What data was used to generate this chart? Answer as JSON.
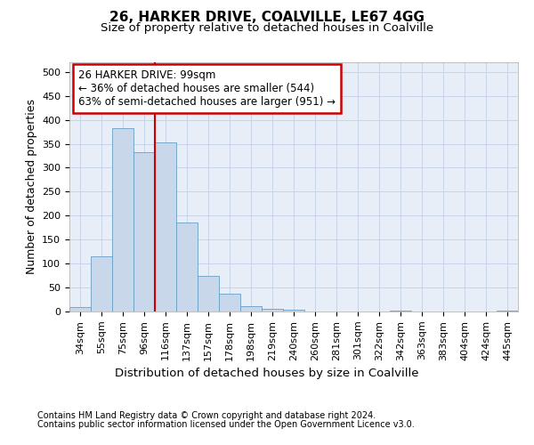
{
  "title1": "26, HARKER DRIVE, COALVILLE, LE67 4GG",
  "title2": "Size of property relative to detached houses in Coalville",
  "xlabel": "Distribution of detached houses by size in Coalville",
  "ylabel": "Number of detached properties",
  "footer1": "Contains HM Land Registry data © Crown copyright and database right 2024.",
  "footer2": "Contains public sector information licensed under the Open Government Licence v3.0.",
  "bar_labels": [
    "34sqm",
    "55sqm",
    "75sqm",
    "96sqm",
    "116sqm",
    "137sqm",
    "157sqm",
    "178sqm",
    "198sqm",
    "219sqm",
    "240sqm",
    "260sqm",
    "281sqm",
    "301sqm",
    "322sqm",
    "342sqm",
    "363sqm",
    "383sqm",
    "404sqm",
    "424sqm",
    "445sqm"
  ],
  "bar_values": [
    10,
    115,
    383,
    333,
    353,
    186,
    75,
    37,
    11,
    6,
    4,
    0,
    0,
    0,
    0,
    2,
    0,
    0,
    0,
    0,
    2
  ],
  "bar_color": "#c8d8ea",
  "bar_edge_color": "#6a9ec5",
  "grid_color": "#c8d4e8",
  "bg_color": "#e8eef8",
  "vline_x": 3.5,
  "vline_color": "#cc0000",
  "annotation_line1": "26 HARKER DRIVE: 99sqm",
  "annotation_line2": "← 36% of detached houses are smaller (544)",
  "annotation_line3": "63% of semi-detached houses are larger (951) →",
  "annotation_box_color": "#ffffff",
  "annotation_box_edge": "#cc0000",
  "ylim": [
    0,
    520
  ],
  "yticks": [
    0,
    50,
    100,
    150,
    200,
    250,
    300,
    350,
    400,
    450,
    500
  ],
  "title1_fontsize": 11,
  "title2_fontsize": 9.5,
  "ylabel_fontsize": 9,
  "xlabel_fontsize": 9.5,
  "tick_fontsize": 8,
  "annotation_fontsize": 8.5,
  "footer_fontsize": 7
}
